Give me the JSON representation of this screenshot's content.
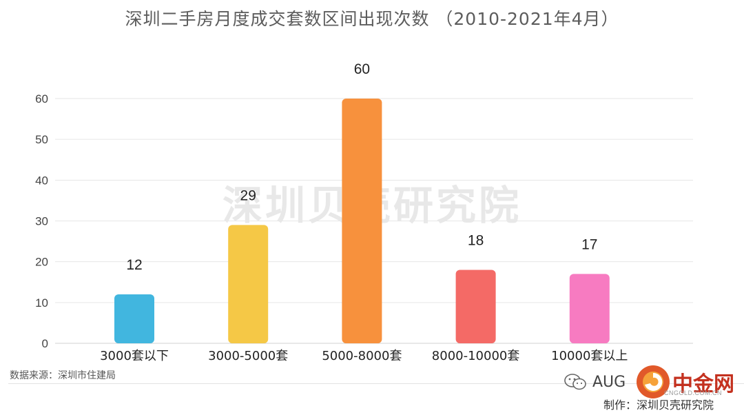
{
  "chart_data": {
    "type": "bar",
    "title": "深圳二手房月度成交套数区间出现次数 （2010-2021年4月）",
    "categories": [
      "3000套以下",
      "3000-5000套",
      "5000-8000套",
      "8000-10000套",
      "10000套以上"
    ],
    "values": [
      12,
      29,
      60,
      18,
      17
    ],
    "colors": [
      "#41b6df",
      "#f5c846",
      "#f7913d",
      "#f46a66",
      "#f77bc1"
    ],
    "ylim": [
      0,
      60
    ],
    "yticks": [
      0,
      10,
      20,
      30,
      40,
      50,
      60
    ],
    "grid": true,
    "legend": "none",
    "xlabel": "",
    "ylabel": ""
  },
  "watermark": "深圳贝壳研究院",
  "footer": {
    "source": "数据来源：深圳市住建局",
    "wechat_account": "AUG",
    "wechat_icon": "wechat-icon",
    "site_logo_icon": "cngold-logo-icon",
    "site_name": "中金网",
    "site_domain": "CNGOLD.COM.CN",
    "producer": "制作：深圳贝壳研究院"
  }
}
